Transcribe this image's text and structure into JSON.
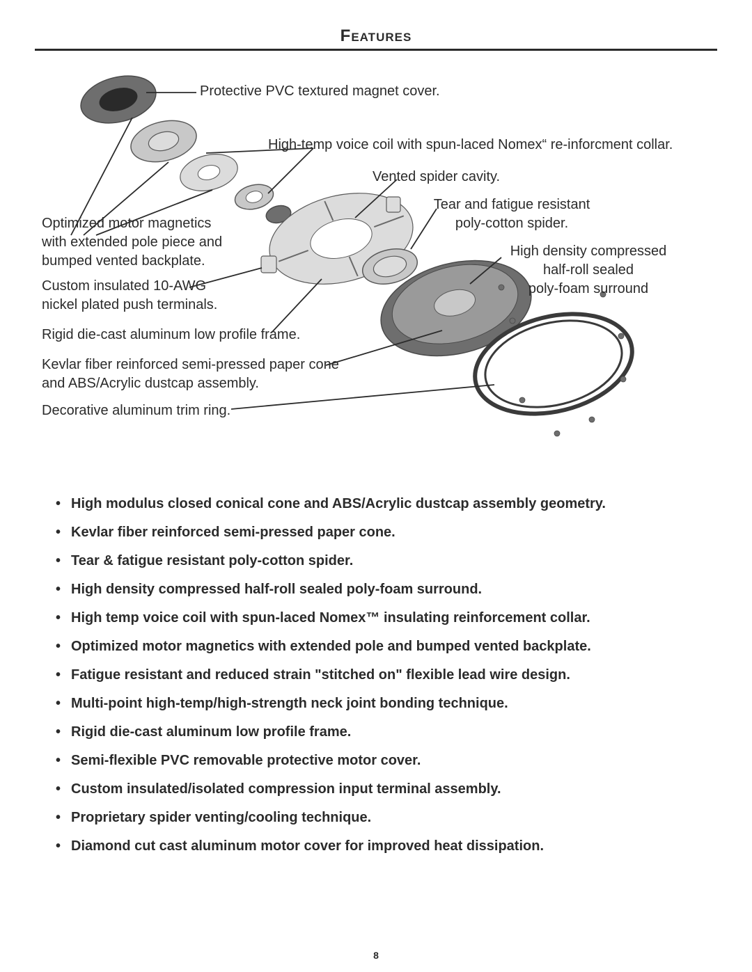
{
  "page": {
    "title": "Features",
    "number": "8"
  },
  "callouts": {
    "pvc_cover": "Protective PVC textured magnet cover.",
    "voice_coil": "High-temp voice coil with spun-laced Nomex“ re-inforcment collar.",
    "vented_spider": "Vented spider cavity.",
    "tear_spider": "Tear and fatigue resistant\npoly-cotton spider.",
    "surround": "High density compressed\nhalf-roll sealed\npoly-foam surround",
    "motor_magnetics": "Optimized motor magnetics\nwith extended pole piece and\nbumped vented backplate.",
    "terminals": "Custom insulated 10-AWG\nnickel plated push terminals.",
    "frame": "Rigid die-cast aluminum low profile frame.",
    "cone": "Kevlar fiber reinforced semi-pressed paper cone\nand ABS/Acrylic dustcap assembly.",
    "trim_ring": "Decorative aluminum trim ring."
  },
  "features": [
    "High modulus closed conical cone and ABS/Acrylic dustcap assembly geometry.",
    "Kevlar fiber reinforced semi-pressed paper cone.",
    "Tear & fatigue resistant poly-cotton spider.",
    "High density compressed half-roll sealed poly-foam surround.",
    "High temp voice coil with spun-laced Nomex™ insulating reinforcement collar.",
    "Optimized motor magnetics with extended pole and bumped vented backplate.",
    "Fatigue resistant and reduced strain \"stitched on\" flexible lead wire design.",
    "Multi-point high-temp/high-strength neck joint bonding technique.",
    "Rigid die-cast aluminum low profile frame.",
    "Semi-flexible PVC removable protective motor cover.",
    "Custom insulated/isolated compression input terminal assembly.",
    "Proprietary spider venting/cooling technique.",
    "Diamond cut cast aluminum motor cover for improved heat dissipation."
  ],
  "diagram": {
    "parts_stroke": "#5a5a5a",
    "parts_fill": "#bfbfbf",
    "parts_fill_light": "#d9d9d9",
    "parts_fill_dark": "#6e6e6e",
    "line_stroke": "#2b2b2b"
  }
}
